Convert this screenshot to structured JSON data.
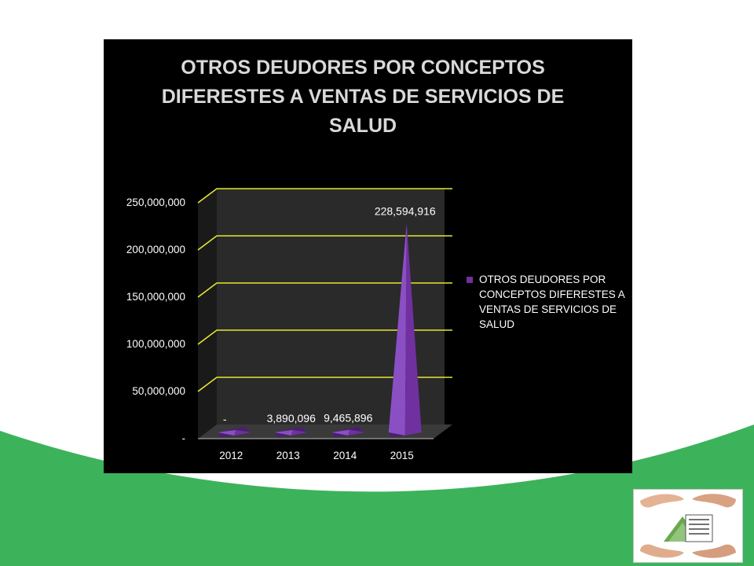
{
  "colors": {
    "green_band": "#3cb35a",
    "panel_background": "#000000",
    "gridline": "#e6e633",
    "bar_purple": "#7030a0",
    "wall": "#2a2a2a"
  },
  "legend": {
    "entries": [
      "OTROS DEUDORES POR CONCEPTOS DIFERESTES A VENTAS DE SERVICIOS DE SALUD"
    ],
    "position": "right"
  },
  "logo": {
    "icon": "hands-house-logo-icon"
  },
  "chart_data": {
    "type": "bar",
    "shape": "3d-cone",
    "title": "OTROS DEUDORES POR CONCEPTOS DIFERESTES A VENTAS DE SERVICIOS DE SALUD",
    "xlabel": "",
    "ylabel": "",
    "categories": [
      "2012",
      "2013",
      "2014",
      "2015"
    ],
    "series": [
      {
        "name": "OTROS DEUDORES POR CONCEPTOS DIFERESTES A VENTAS DE SERVICIOS DE SALUD",
        "values": [
          0,
          3890096,
          9465896,
          228594916
        ]
      }
    ],
    "data_labels": [
      "-",
      "3,890,096",
      "9,465,896",
      "228,594,916"
    ],
    "ylim": [
      0,
      250000000
    ],
    "y_ticks": [
      0,
      50000000,
      100000000,
      150000000,
      200000000,
      250000000
    ],
    "y_tick_labels": [
      "-",
      "50,000,000",
      "100,000,000",
      "150,000,000",
      "200,000,000",
      "250,000,000"
    ],
    "grid": true,
    "legend_position": "right"
  }
}
